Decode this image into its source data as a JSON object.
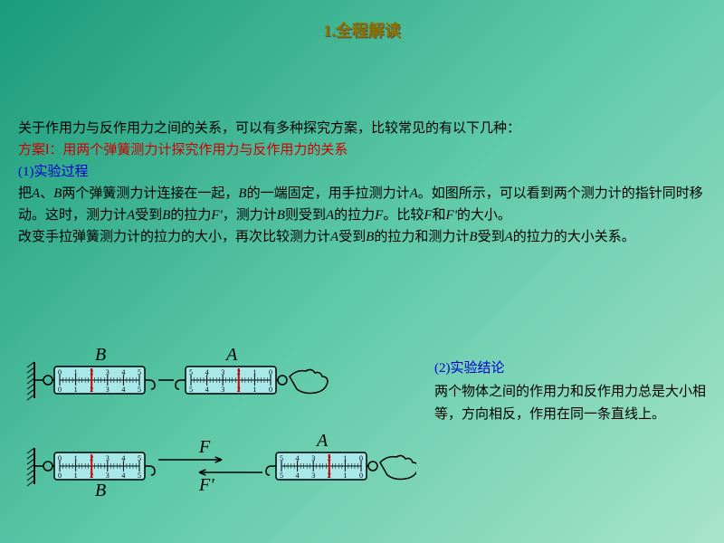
{
  "title": "1.全程解读",
  "intro": "关于作用力与反作用力之间的关系，可以有多种探究方案，比较常见的有以下几种：",
  "scheme_label": "方案Ⅰ：用两个弹簧测力计探究作用力与反作用力的关系",
  "section1_label": "(1)实验过程",
  "p1a": "把",
  "p1b": "A",
  "p1c": "、",
  "p1d": "B",
  "p1e": "两个弹簧测力计连接在一起，",
  "p1f": "B",
  "p1g": "的一端固定，用手拉测力计",
  "p1h": "A",
  "p1i": "。如图所示，可以看到两个测力计的指针同时移动。这时，测力计",
  "p1j": "A",
  "p1k": "受到",
  "p1l": "B",
  "p1m": "的拉力",
  "p1n": "F'",
  "p1o": "，测力计",
  "p1p": "B",
  "p1q": "则受到",
  "p1r": "A",
  "p1s": "的拉力",
  "p1t": "F",
  "p1u": "。比较",
  "p1v": "F",
  "p1w": "和",
  "p1x": "F'",
  "p1y": "的大小。",
  "p2a": "改变手拉弹簧测力计的拉力的大小，再次比较测力计",
  "p2b": "A",
  "p2c": "受到",
  "p2d": "B",
  "p2e": "的拉力和测力计",
  "p2f": "B",
  "p2g": "受到",
  "p2h": "A",
  "p2i": "的拉力的大小关系。",
  "section2_label": "(2)实验结论",
  "conclusion_text": "两个物体之间的作用力和反作用力总是大小相等，方向相反，作用在同一条直线上。",
  "diagram": {
    "label_B": "B",
    "label_A": "A",
    "label_F": "F",
    "label_Fp": "F'",
    "dyn_fill": "#a8e8e8",
    "dyn_stroke": "#000000",
    "pointer_color": "#d00000",
    "scale_numbers": [
      "0",
      "1",
      "2",
      "3",
      "4",
      "5"
    ],
    "wall_color": "#000000"
  }
}
